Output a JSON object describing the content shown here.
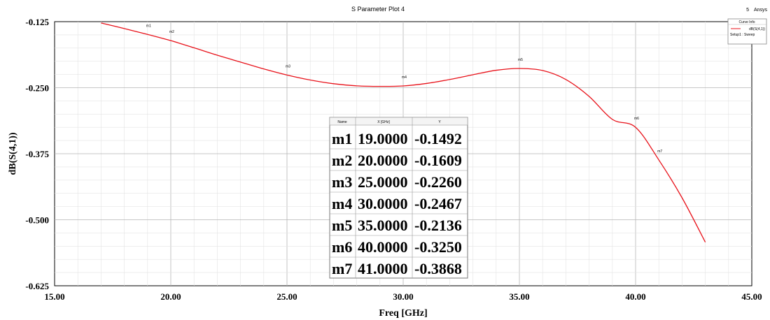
{
  "chart_data": {
    "type": "line",
    "title": "S Parameter Plot 4",
    "brand": "Ansys",
    "brand_number": "5",
    "xlabel": "Freq [GHz]",
    "ylabel": "dB(S(4,1))",
    "xlim": [
      15,
      45
    ],
    "ylim": [
      -0.625,
      -0.125
    ],
    "x_ticks": [
      "15.00",
      "20.00",
      "25.00",
      "30.00",
      "35.00",
      "40.00",
      "45.00"
    ],
    "y_ticks": [
      "-0.125",
      "-0.250",
      "-0.375",
      "-0.500",
      "-0.625"
    ],
    "grid": true,
    "series": [
      {
        "name": "dB(S(4,1))",
        "setup": "Setup1 : Sweep",
        "color": "#e8121a",
        "x": [
          17,
          18,
          19,
          20,
          21,
          22,
          23,
          24,
          25,
          26,
          27,
          28,
          29,
          30,
          31,
          32,
          33,
          34,
          35,
          36,
          37,
          38,
          39,
          40,
          41,
          42,
          43
        ],
        "y": [
          -0.1275,
          -0.138,
          -0.1492,
          -0.1609,
          -0.1745,
          -0.1885,
          -0.2015,
          -0.2145,
          -0.226,
          -0.2355,
          -0.2425,
          -0.2465,
          -0.2475,
          -0.2467,
          -0.242,
          -0.2345,
          -0.2255,
          -0.217,
          -0.2136,
          -0.2175,
          -0.2345,
          -0.2665,
          -0.31,
          -0.325,
          -0.3868,
          -0.4585,
          -0.5425
        ]
      }
    ],
    "legend": {
      "title": "Curve Info",
      "entry": "dB(S(4,1))",
      "setup": "Setup1 : Sweep",
      "placement": "top-right"
    },
    "markers": [
      {
        "name": "m1",
        "x": 19,
        "y": -0.1492
      },
      {
        "name": "m2",
        "x": 20,
        "y": -0.1609
      },
      {
        "name": "m3",
        "x": 25,
        "y": -0.226
      },
      {
        "name": "m4",
        "x": 30,
        "y": -0.2467
      },
      {
        "name": "m5",
        "x": 35,
        "y": -0.2136
      },
      {
        "name": "m6",
        "x": 40,
        "y": -0.325
      },
      {
        "name": "m7",
        "x": 41,
        "y": -0.3868
      }
    ],
    "marker_table": {
      "headers": [
        "Name",
        "X [GHz]",
        "Y"
      ],
      "rows": [
        [
          "m1",
          "19.0000",
          "-0.1492"
        ],
        [
          "m2",
          "20.0000",
          "-0.1609"
        ],
        [
          "m3",
          "25.0000",
          "-0.2260"
        ],
        [
          "m4",
          "30.0000",
          "-0.2467"
        ],
        [
          "m5",
          "35.0000",
          "-0.2136"
        ],
        [
          "m6",
          "40.0000",
          "-0.3250"
        ],
        [
          "m7",
          "41.0000",
          "-0.3868"
        ]
      ]
    }
  }
}
